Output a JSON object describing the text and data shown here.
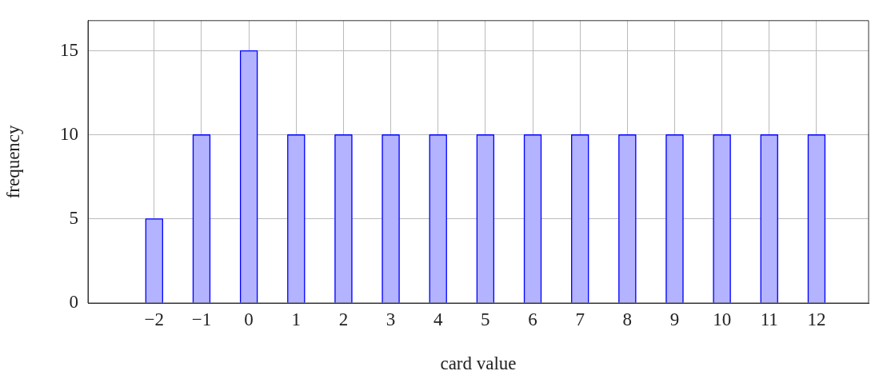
{
  "chart_data": {
    "type": "bar",
    "xlabel": "card value",
    "ylabel": "frequency",
    "x": [
      -2,
      -1,
      0,
      1,
      2,
      3,
      4,
      5,
      6,
      7,
      8,
      9,
      10,
      11,
      12
    ],
    "values": [
      5,
      10,
      15,
      10,
      10,
      10,
      10,
      10,
      10,
      10,
      10,
      10,
      10,
      10,
      10
    ],
    "color": "#b3b3ff",
    "xlim": [
      -3.4,
      13.1
    ],
    "xticks": [
      -2,
      -1,
      0,
      1,
      2,
      3,
      4,
      5,
      6,
      7,
      8,
      9,
      10,
      11,
      12
    ],
    "ylim": [
      0,
      16.8
    ],
    "yticks": [
      0,
      5,
      10,
      15
    ],
    "grid": true
  }
}
